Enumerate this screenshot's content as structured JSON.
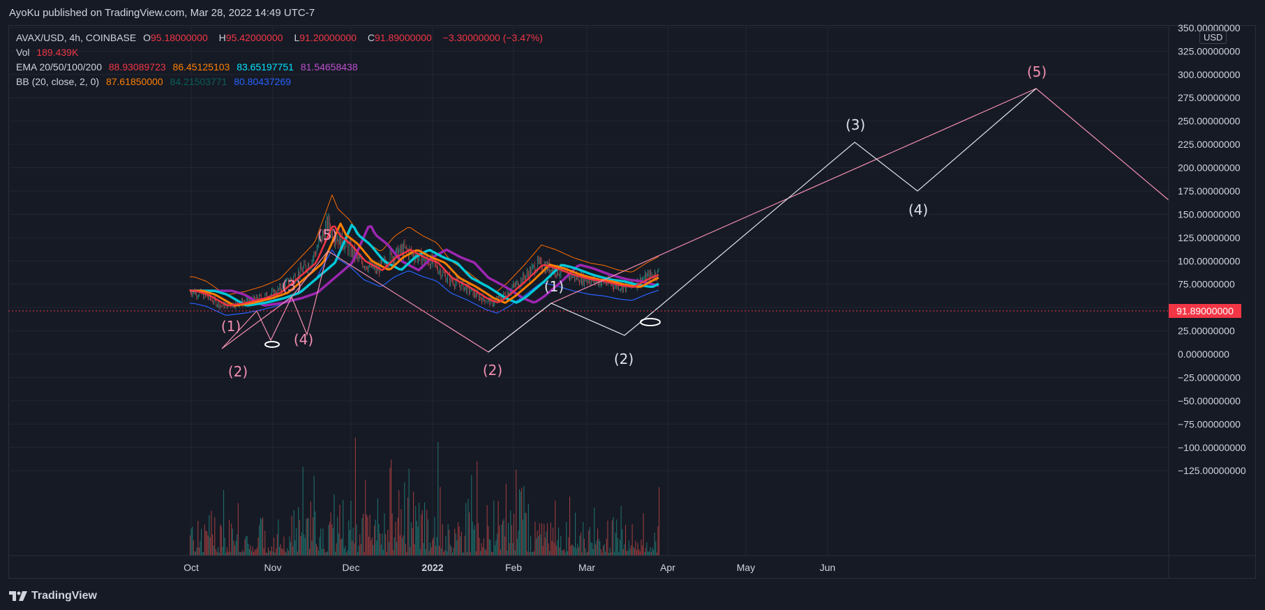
{
  "header": {
    "publish_text": "AyoKu published on TradingView.com, Mar 28, 2022 14:49 UTC-7"
  },
  "legend": {
    "symbol": "AVAX/USD, 4h, COINBASE",
    "open_label": "O",
    "open": "95.18000000",
    "high_label": "H",
    "high": "95.42000000",
    "low_label": "L",
    "low": "91.20000000",
    "close_label": "C",
    "close": "91.89000000",
    "change": "−3.30000000 (−3.47%)",
    "vol_label": "Vol",
    "vol": "189.439K",
    "ema_label": "EMA 20/50/100/200",
    "ema_values": [
      "88.93089723",
      "86.45125103",
      "83.65197751",
      "81.54658438"
    ],
    "bb_label": "BB (20, close, 2, 0)",
    "bb_values": [
      "87.61850000",
      "84.21503771",
      "80.80437269"
    ]
  },
  "price_axis": {
    "currency": "USD",
    "ticks": [
      "350.00000000",
      "325.00000000",
      "300.00000000",
      "275.00000000",
      "250.00000000",
      "225.00000000",
      "200.00000000",
      "175.00000000",
      "150.00000000",
      "125.00000000",
      "100.00000000",
      "75.00000000",
      "50.00000000",
      "25.00000000",
      "0.00000000",
      "−25.00000000",
      "−50.00000000",
      "−75.00000000",
      "−100.00000000",
      "−125.00000000"
    ],
    "tick_values": [
      350,
      325,
      300,
      275,
      250,
      225,
      200,
      175,
      150,
      125,
      100,
      75,
      50,
      25,
      0,
      -25,
      -50,
      -75,
      -100,
      -125
    ],
    "last_price": "91.89000000",
    "last_price_value": 91.89
  },
  "time_axis": {
    "labels": [
      "Oct",
      "Nov",
      "Dec",
      "2022",
      "Feb",
      "Mar",
      "Apr",
      "May",
      "Jun"
    ],
    "bold": [
      false,
      false,
      false,
      true,
      false,
      false,
      false,
      false,
      false
    ]
  },
  "wave_labels": {
    "pink_1": "(1)",
    "pink_2a": "(2)",
    "pink_3": "(3)",
    "pink_4": "(4)",
    "pink_5": "(5)",
    "pink_2b": "(2)",
    "white_1": "(1)",
    "white_2": "(2)",
    "white_3": "(3)",
    "white_4": "(4)",
    "top_5": "(5)"
  },
  "footer": {
    "logo_text": "TradingView"
  },
  "colors": {
    "background": "#161a25",
    "grid": "#232632",
    "text": "#d1d4dc",
    "up": "#26a69a",
    "down": "#ef5350",
    "pink_wave": "#f48fb1",
    "white_wave": "#e0e3eb",
    "ema20": "#f23645",
    "ema50": "#ff8000",
    "ema100": "#00c8d7",
    "ema200": "#9c27b0",
    "bb_upper": "#ff6d00",
    "bb_lower": "#2962ff",
    "last_price": "#f23645"
  }
}
